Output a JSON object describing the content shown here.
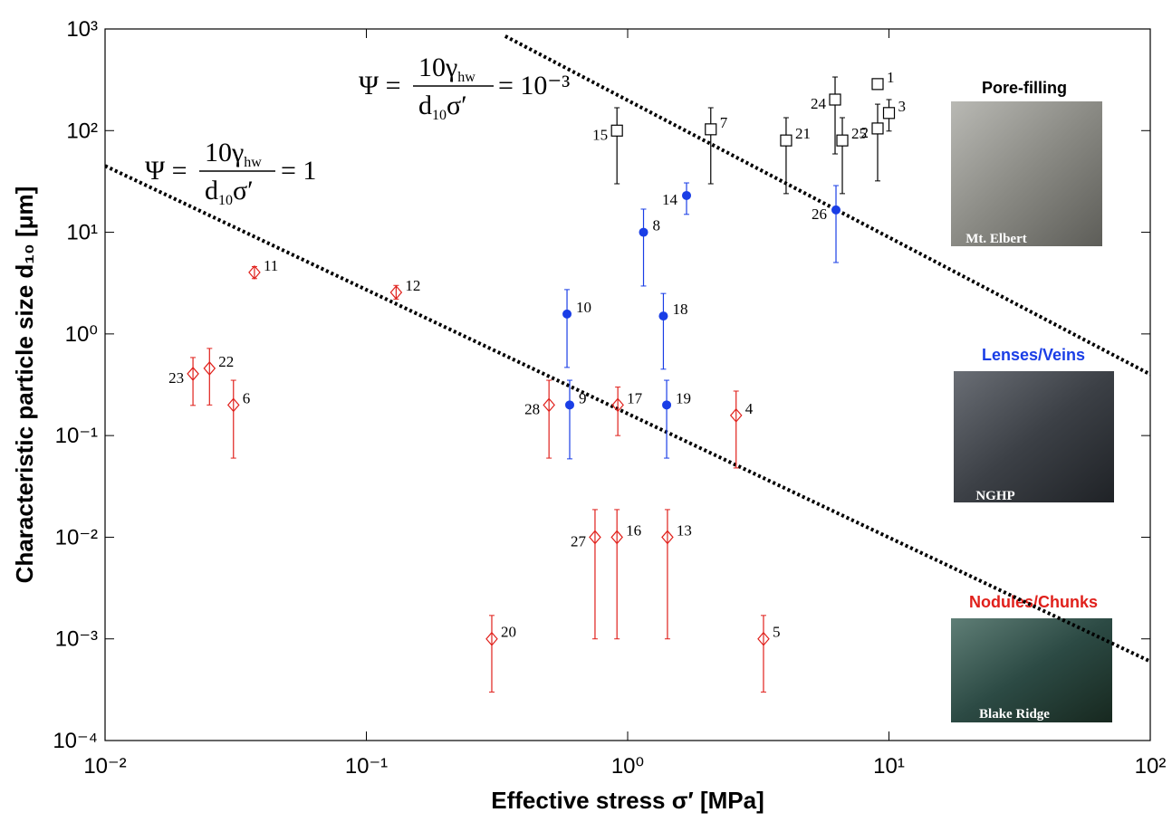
{
  "chart_data": {
    "type": "scatter",
    "xlabel": "Effective stress σ′  [MPa]",
    "ylabel": "Characteristic particle size d₁₀ [μm]",
    "log_x": true,
    "log_y": true,
    "grid": false,
    "xlim": [
      0.01,
      100
    ],
    "ylim": [
      0.0001,
      1000
    ],
    "xticks": [
      {
        "value": 0.01,
        "label": "10⁻²"
      },
      {
        "value": 0.1,
        "label": "10⁻¹"
      },
      {
        "value": 1,
        "label": "10⁰"
      },
      {
        "value": 10,
        "label": "10¹"
      },
      {
        "value": 100,
        "label": "10²"
      }
    ],
    "yticks": [
      {
        "value": 0.0001,
        "label": "10⁻⁴"
      },
      {
        "value": 0.001,
        "label": "10⁻³"
      },
      {
        "value": 0.01,
        "label": "10⁻²"
      },
      {
        "value": 0.1,
        "label": "10⁻¹"
      },
      {
        "value": 1,
        "label": "10⁰"
      },
      {
        "value": 10,
        "label": "10¹"
      },
      {
        "value": 100,
        "label": "10²"
      },
      {
        "value": 1000,
        "label": "10³"
      }
    ],
    "series": [
      {
        "name": "Pore-filling",
        "caption": "Mt. Elbert",
        "color": "#000000",
        "marker": "square",
        "labels": [
          "1",
          "2",
          "3",
          "24",
          "25",
          "21",
          "7",
          "15"
        ],
        "x": [
          9.05,
          9.05,
          10.0,
          6.22,
          6.63,
          4.04,
          2.08,
          0.91
        ],
        "values": [
          287,
          105,
          149,
          202,
          80,
          80,
          103,
          100
        ],
        "err_low": [
          270,
          32,
          99,
          59,
          24,
          24,
          30,
          30
        ],
        "err_high": [
          305,
          182,
          202,
          337,
          134,
          134,
          168,
          168
        ]
      },
      {
        "name": "Lenses/Veins",
        "caption": "NGHP",
        "color": "#1a3ee6",
        "marker": "circle",
        "labels": [
          "14",
          "8",
          "26",
          "10",
          "18",
          "9",
          "19"
        ],
        "x": [
          1.68,
          1.15,
          6.27,
          0.586,
          1.37,
          0.6,
          1.41
        ],
        "values": [
          23,
          10,
          16.6,
          1.57,
          1.5,
          0.2,
          0.2
        ],
        "err_low": [
          15,
          2.96,
          5.04,
          0.468,
          0.45,
          0.059,
          0.06
        ],
        "err_high": [
          30.6,
          16.9,
          28.8,
          2.73,
          2.5,
          0.35,
          0.35
        ]
      },
      {
        "name": "Nodules/Chunks",
        "caption": "Blake Ridge",
        "color": "#e0201b",
        "marker": "diamond",
        "labels": [
          "11",
          "12",
          "23",
          "22",
          "6",
          "28",
          "17",
          "4",
          "27",
          "16",
          "13",
          "20",
          "5"
        ],
        "x": [
          0.0373,
          0.13,
          0.0217,
          0.0251,
          0.031,
          0.5,
          0.917,
          2.6,
          0.75,
          0.91,
          1.42,
          0.302,
          3.31
        ],
        "values": [
          4.03,
          2.56,
          0.405,
          0.458,
          0.2,
          0.2,
          0.2,
          0.158,
          0.01,
          0.01,
          0.01,
          0.001,
          0.001
        ],
        "err_low": [
          3.5,
          2.2,
          0.198,
          0.2,
          0.06,
          0.06,
          0.1,
          0.048,
          0.001,
          0.001,
          0.001,
          0.0003,
          0.0003
        ],
        "err_high": [
          4.6,
          3.0,
          0.586,
          0.72,
          0.35,
          0.35,
          0.3,
          0.274,
          0.0187,
          0.0187,
          0.0187,
          0.0017,
          0.0017
        ]
      }
    ],
    "lines": [
      {
        "x": [
          0.34,
          100
        ],
        "y": [
          850,
          0.4
        ]
      },
      {
        "x": [
          0.01,
          100
        ],
        "y": [
          45,
          0.0006
        ]
      }
    ],
    "annotations": [
      {
        "lhs": "Ψ =",
        "numerator": "10γ",
        "numerator_sub": "hw",
        "denominator": "d",
        "denominator_sub": "10",
        "denominator_tail": "σ′",
        "rhs": "= 10⁻³"
      },
      {
        "lhs": "Ψ =",
        "numerator": "10γ",
        "numerator_sub": "hw",
        "denominator": "d",
        "denominator_sub": "10",
        "denominator_tail": "σ′",
        "rhs": "= 1"
      }
    ]
  }
}
